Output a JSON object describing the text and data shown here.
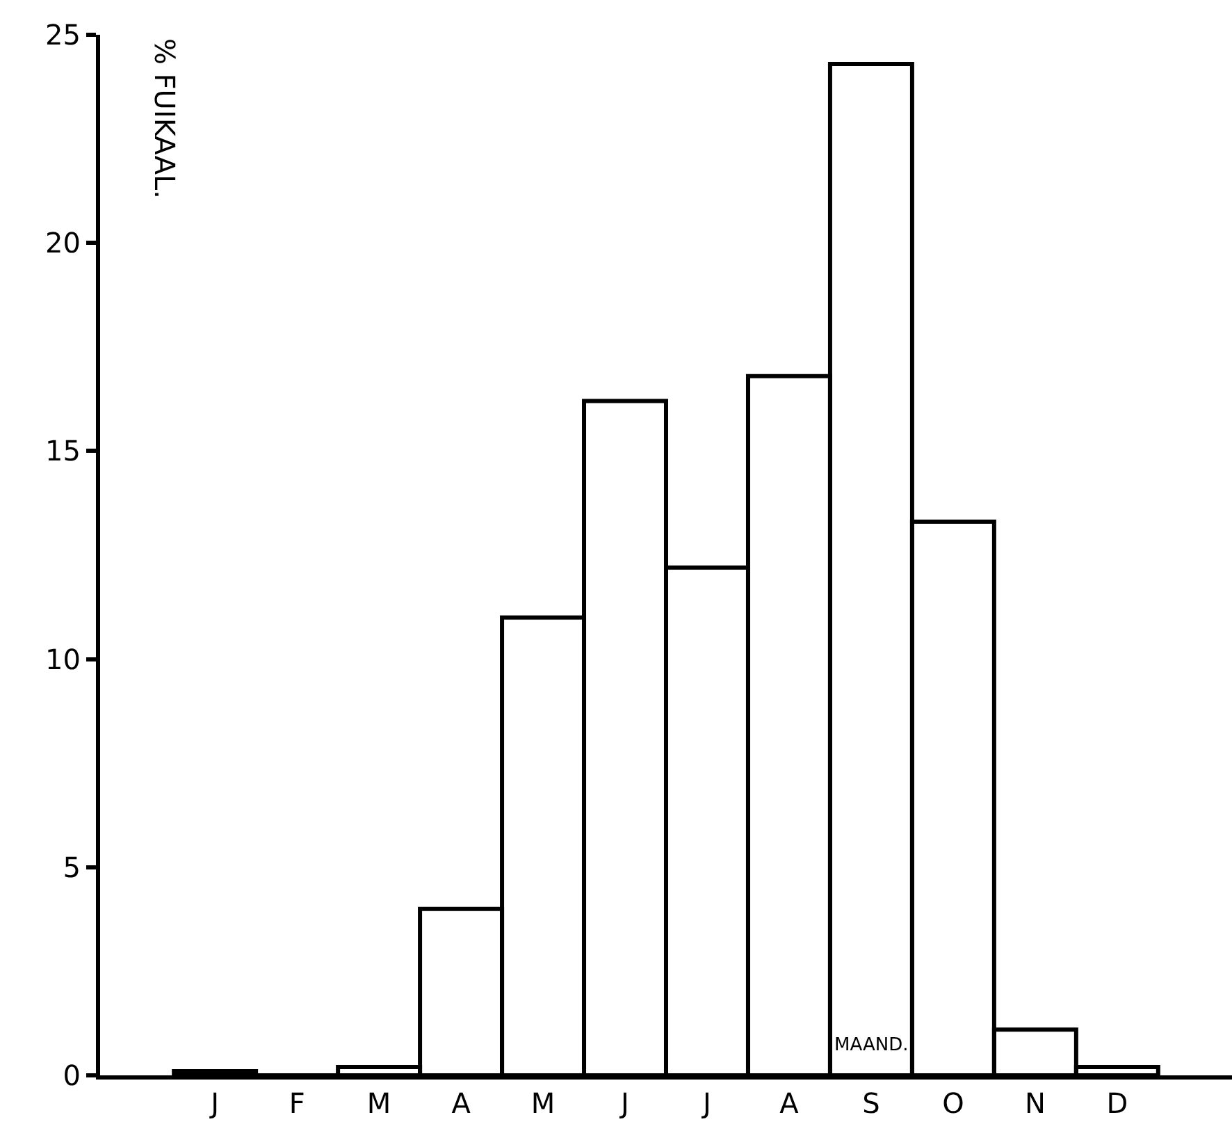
{
  "chart_data": {
    "type": "bar",
    "xlabel": "MAAND.",
    "ylabel": "% FUIKAAL.",
    "categories": [
      "J",
      "F",
      "M",
      "A",
      "M",
      "J",
      "J",
      "A",
      "S",
      "O",
      "N",
      "D"
    ],
    "values": [
      0.1,
      0,
      0.2,
      4.0,
      11.0,
      16.2,
      12.2,
      16.8,
      24.3,
      13.3,
      1.1,
      0.2
    ],
    "color": "#000000",
    "ylim": [
      0,
      25
    ],
    "yticks": [
      0,
      5,
      10,
      15,
      20,
      25
    ]
  }
}
